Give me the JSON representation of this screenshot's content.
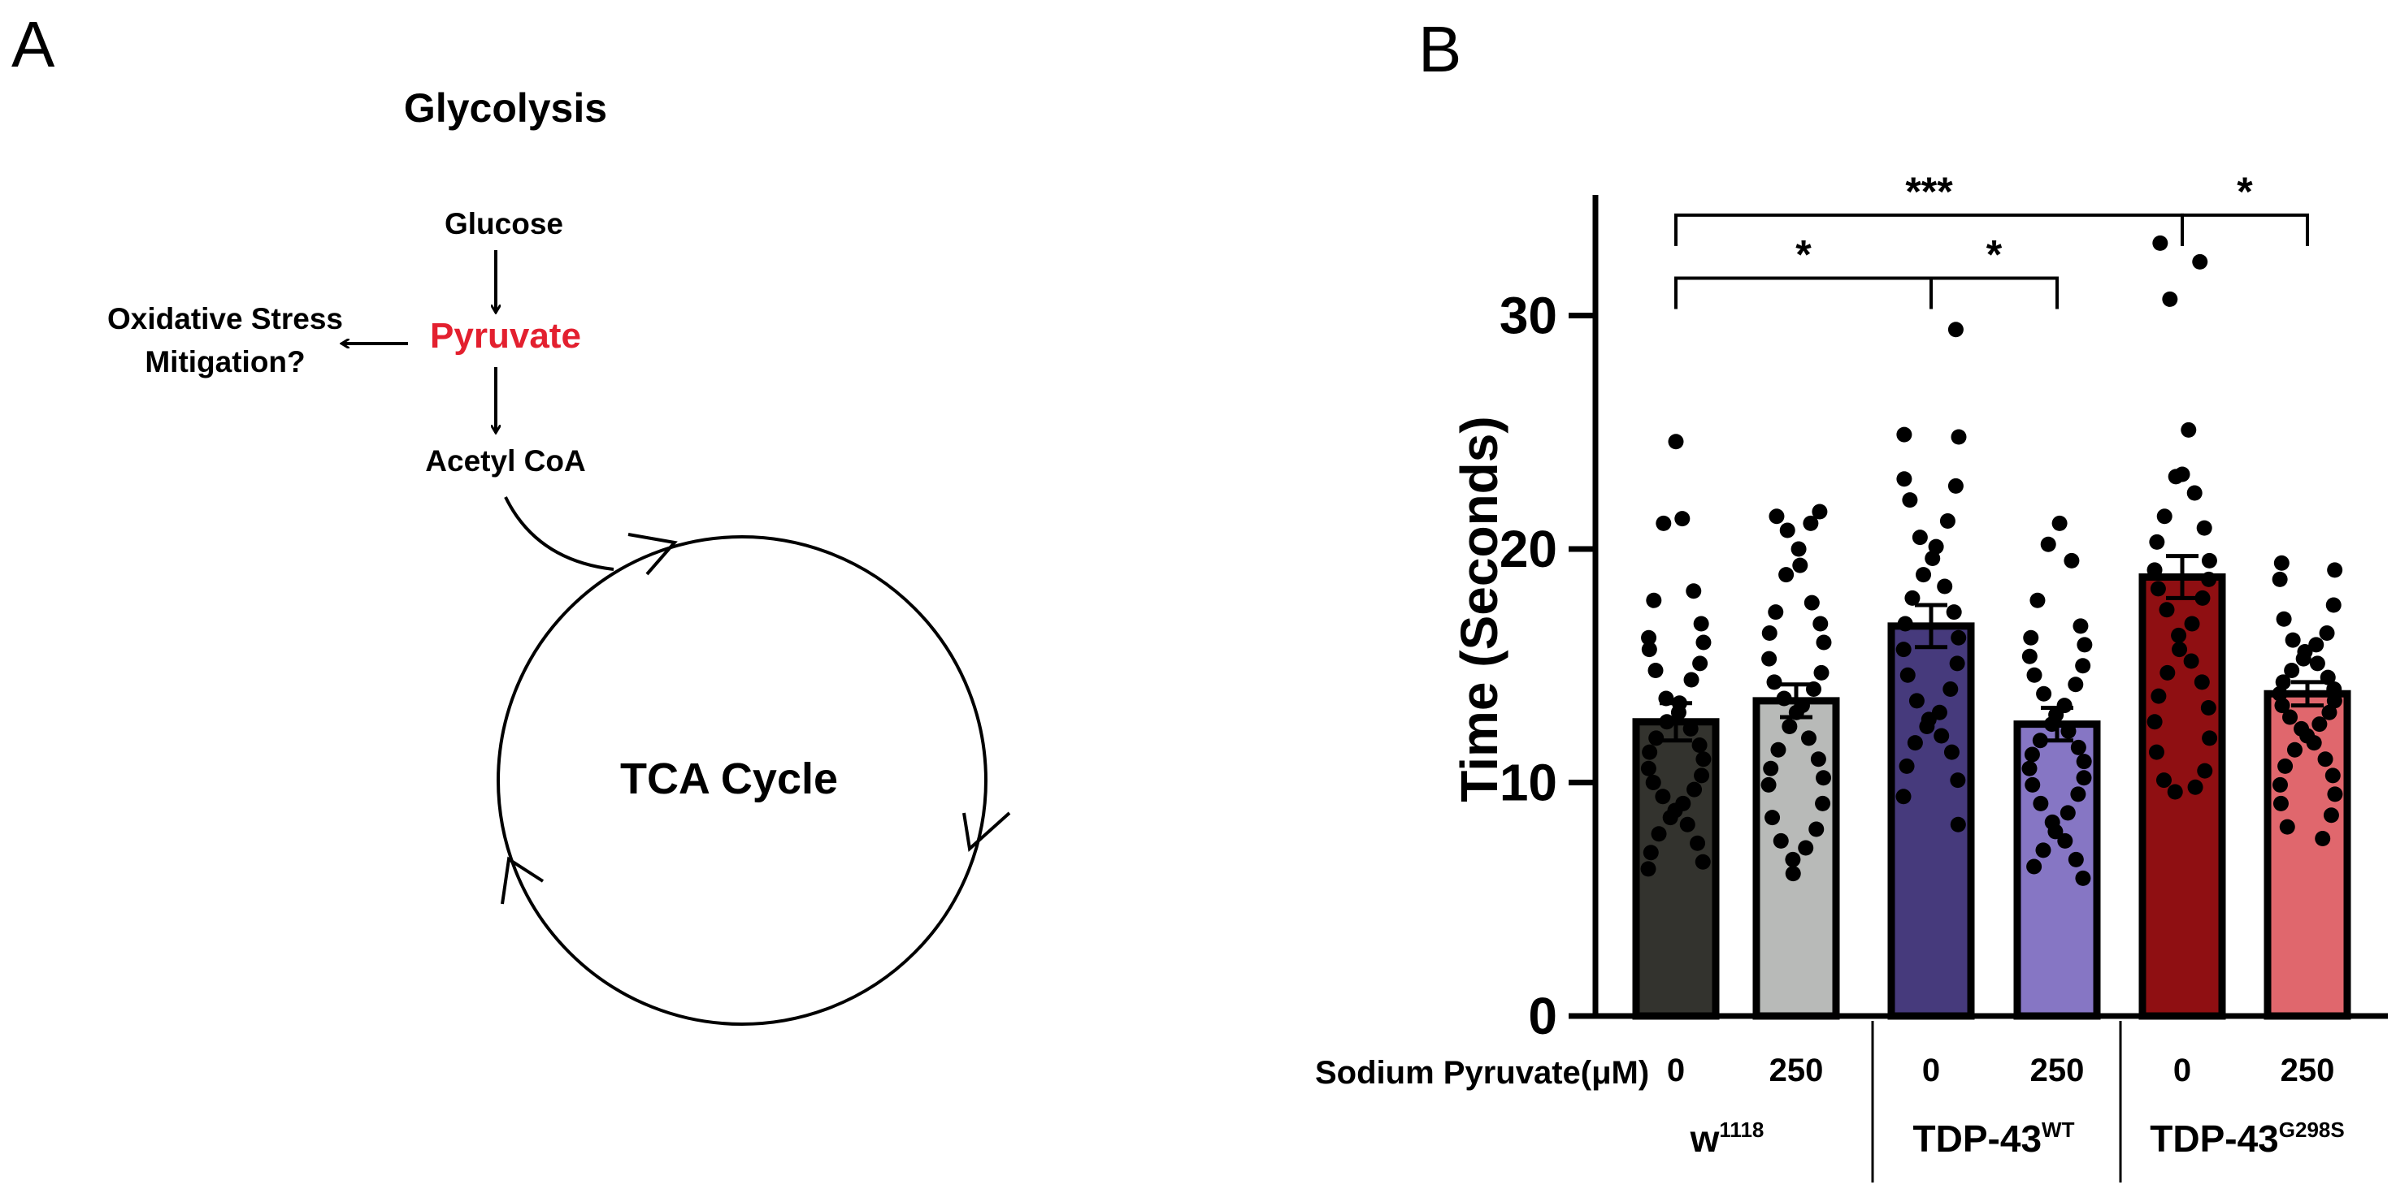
{
  "panel_a": {
    "label": "A",
    "title": "Glycolysis",
    "glucose": "Glucose",
    "pyruvate": "Pyruvate",
    "pyruvate_color": "#e3202f",
    "oxidative_line1": "Oxidative Stress",
    "oxidative_line2": "Mitigation?",
    "acetyl": "Acetyl CoA",
    "tca": "TCA Cycle"
  },
  "panel_b": {
    "label": "B",
    "treatment_label": "Sodium Pyruvate(μM)",
    "groups": [
      {
        "base": "w",
        "sup": "1118"
      },
      {
        "base": "TDP-43",
        "sup": "WT"
      },
      {
        "base": "TDP-43",
        "sup": "G298S"
      }
    ]
  },
  "chart_data": {
    "type": "bar",
    "title": "",
    "xlabel": "",
    "ylabel": "Time (Seconds)",
    "ylim": [
      0,
      35
    ],
    "yticks": [
      0,
      10,
      20,
      30
    ],
    "categories": [
      "0",
      "250",
      "0",
      "250",
      "0",
      "250"
    ],
    "values": [
      12.6,
      13.5,
      16.7,
      12.5,
      18.8,
      13.8
    ],
    "errors": [
      0.8,
      0.7,
      0.9,
      0.7,
      0.9,
      0.5
    ],
    "colors": [
      "#33332e",
      "#b8bab8",
      "#463a7c",
      "#8676c4",
      "#8f0f12",
      "#e0676d"
    ],
    "points": [
      [
        24.6,
        21.3,
        21.1,
        18.2,
        17.8,
        16.8,
        16.2,
        16.0,
        15.7,
        15.1,
        14.8,
        14.4,
        13.6,
        13.4,
        13.0,
        12.6,
        12.3,
        11.9,
        11.6,
        11.3,
        11.0,
        10.6,
        10.3,
        10.0,
        9.7,
        9.4,
        9.1,
        8.8,
        8.5,
        8.2,
        7.8,
        7.4,
        7.0,
        6.6,
        6.3
      ],
      [
        21.6,
        21.4,
        21.1,
        20.8,
        20.0,
        19.3,
        18.9,
        17.7,
        17.3,
        16.8,
        16.4,
        16.0,
        15.3,
        14.7,
        14.3,
        14.0,
        13.6,
        13.3,
        13.0,
        12.4,
        11.9,
        11.4,
        11.0,
        10.6,
        10.2,
        9.9,
        9.1,
        8.5,
        8.0,
        7.5,
        7.2,
        6.7,
        6.1
      ],
      [
        29.4,
        24.9,
        24.8,
        23.0,
        22.7,
        22.1,
        21.2,
        20.5,
        20.1,
        19.6,
        18.9,
        18.4,
        17.9,
        17.3,
        16.8,
        16.2,
        15.7,
        15.1,
        14.6,
        14.0,
        13.5,
        13.0,
        12.7,
        12.4,
        12.0,
        11.7,
        11.3,
        10.7,
        10.1,
        9.4,
        8.2
      ],
      [
        21.1,
        20.2,
        19.5,
        17.8,
        16.7,
        16.2,
        15.9,
        15.4,
        15.0,
        14.6,
        14.2,
        13.8,
        13.3,
        12.9,
        12.5,
        12.2,
        11.8,
        11.5,
        11.2,
        10.9,
        10.6,
        10.2,
        9.9,
        9.5,
        9.1,
        8.7,
        8.3,
        7.9,
        7.5,
        7.1,
        6.7,
        6.4,
        5.9
      ],
      [
        33.1,
        32.3,
        30.7,
        25.1,
        23.2,
        23.1,
        22.4,
        21.4,
        20.9,
        20.3,
        19.5,
        19.1,
        18.7,
        18.3,
        17.9,
        17.4,
        16.8,
        16.3,
        15.7,
        15.2,
        14.7,
        14.3,
        13.7,
        13.2,
        12.6,
        11.9,
        11.3,
        10.5,
        10.1,
        9.8,
        9.6
      ],
      [
        19.4,
        19.1,
        18.7,
        17.6,
        17.0,
        16.4,
        16.1,
        15.9,
        15.6,
        15.3,
        15.1,
        14.8,
        14.5,
        14.3,
        14.0,
        13.8,
        13.5,
        13.3,
        13.0,
        12.8,
        12.5,
        12.3,
        12.0,
        11.7,
        11.4,
        11.0,
        10.7,
        10.3,
        9.9,
        9.5,
        9.1,
        8.6,
        8.1,
        7.6
      ]
    ],
    "significance": [
      {
        "label": "***",
        "from": 0,
        "to": 4,
        "level": 34.3
      },
      {
        "label": "*",
        "from": 4,
        "to": 5,
        "level": 34.3
      },
      {
        "label": "*",
        "from": 0,
        "to": 2,
        "level": 31.6
      },
      {
        "label": "*",
        "from": 2,
        "to": 3,
        "level": 31.6
      }
    ]
  }
}
